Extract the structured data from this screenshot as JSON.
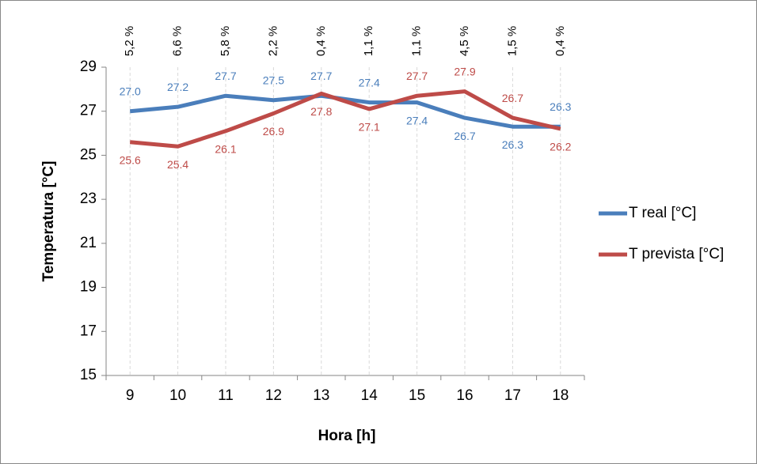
{
  "chart_data": {
    "type": "line",
    "xlabel": "Hora [h]",
    "ylabel": "Temperatura [°C]",
    "categories": [
      "9",
      "10",
      "11",
      "12",
      "13",
      "14",
      "15",
      "16",
      "17",
      "18"
    ],
    "annotations": [
      "5,2 %",
      "6,6 %",
      "5,8 %",
      "2,2 %",
      "0,4 %",
      "1,1 %",
      "1,1 %",
      "4,5 %",
      "1,5 %",
      "0,4 %"
    ],
    "series": [
      {
        "name": "T real [°C]",
        "color": "#4a7ebb",
        "values": [
          27.0,
          27.2,
          27.7,
          27.5,
          27.7,
          27.4,
          27.4,
          26.7,
          26.3,
          26.3
        ],
        "value_labels": [
          "27.0",
          "27.2",
          "27.7",
          "27.5",
          "27.7",
          "27.4",
          "27.4",
          "26.7",
          "26.3",
          "26.3"
        ]
      },
      {
        "name": "T prevista [°C]",
        "color": "#be4b48",
        "values": [
          25.6,
          25.4,
          26.1,
          26.9,
          27.8,
          27.1,
          27.7,
          27.9,
          26.7,
          26.2
        ],
        "value_labels": [
          "25.6",
          "25.4",
          "26.1",
          "26.9",
          "27.8",
          "27.1",
          "27.7",
          "27.9",
          "26.7",
          "26.2"
        ]
      }
    ],
    "ylim": [
      15,
      29
    ],
    "yticks": [
      15,
      17,
      19,
      21,
      23,
      25,
      27,
      29
    ],
    "legend": "right"
  }
}
